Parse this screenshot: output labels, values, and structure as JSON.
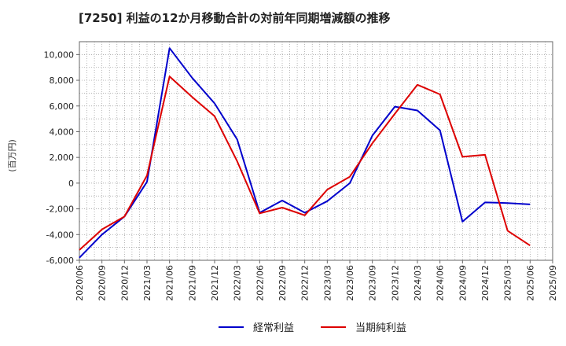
{
  "chart_data": {
    "type": "line",
    "title": "[7250]  利益の12か月移動合計の対前年同期増減額の推移",
    "ylabel": "(百万円)",
    "xlabel": "",
    "ylim": [
      -6000,
      11000
    ],
    "yticks": [
      -6000,
      -4000,
      -2000,
      0,
      2000,
      4000,
      6000,
      8000,
      10000
    ],
    "ytick_labels": [
      "-6,000",
      "-4,000",
      "-2,000",
      "0",
      "2,000",
      "4,000",
      "6,000",
      "8,000",
      "10,000"
    ],
    "x": [
      "2020/06",
      "2020/09",
      "2020/12",
      "2021/03",
      "2021/06",
      "2021/09",
      "2021/12",
      "2022/03",
      "2022/06",
      "2022/09",
      "2022/12",
      "2023/03",
      "2023/06",
      "2023/09",
      "2023/12",
      "2024/03",
      "2024/06",
      "2024/09",
      "2024/12",
      "2025/03",
      "2025/06",
      "2025/09"
    ],
    "grid": true,
    "legend_position": "bottom",
    "series": [
      {
        "name": "経常利益",
        "color": "#0000cc",
        "values": [
          -5800,
          -4000,
          -2600,
          100,
          10500,
          8200,
          6200,
          3400,
          -2300,
          -1350,
          -2300,
          -1400,
          0,
          3700,
          5950,
          5650,
          4100,
          -3000,
          -1500,
          -1550,
          -1650,
          null
        ]
      },
      {
        "name": "当期純利益",
        "color": "#dd0000",
        "values": [
          -5200,
          -3600,
          -2600,
          600,
          8300,
          6700,
          5200,
          1700,
          -2350,
          -1900,
          -2500,
          -500,
          500,
          3100,
          5400,
          7650,
          6900,
          2050,
          2200,
          -3700,
          -4850,
          null
        ]
      }
    ]
  }
}
